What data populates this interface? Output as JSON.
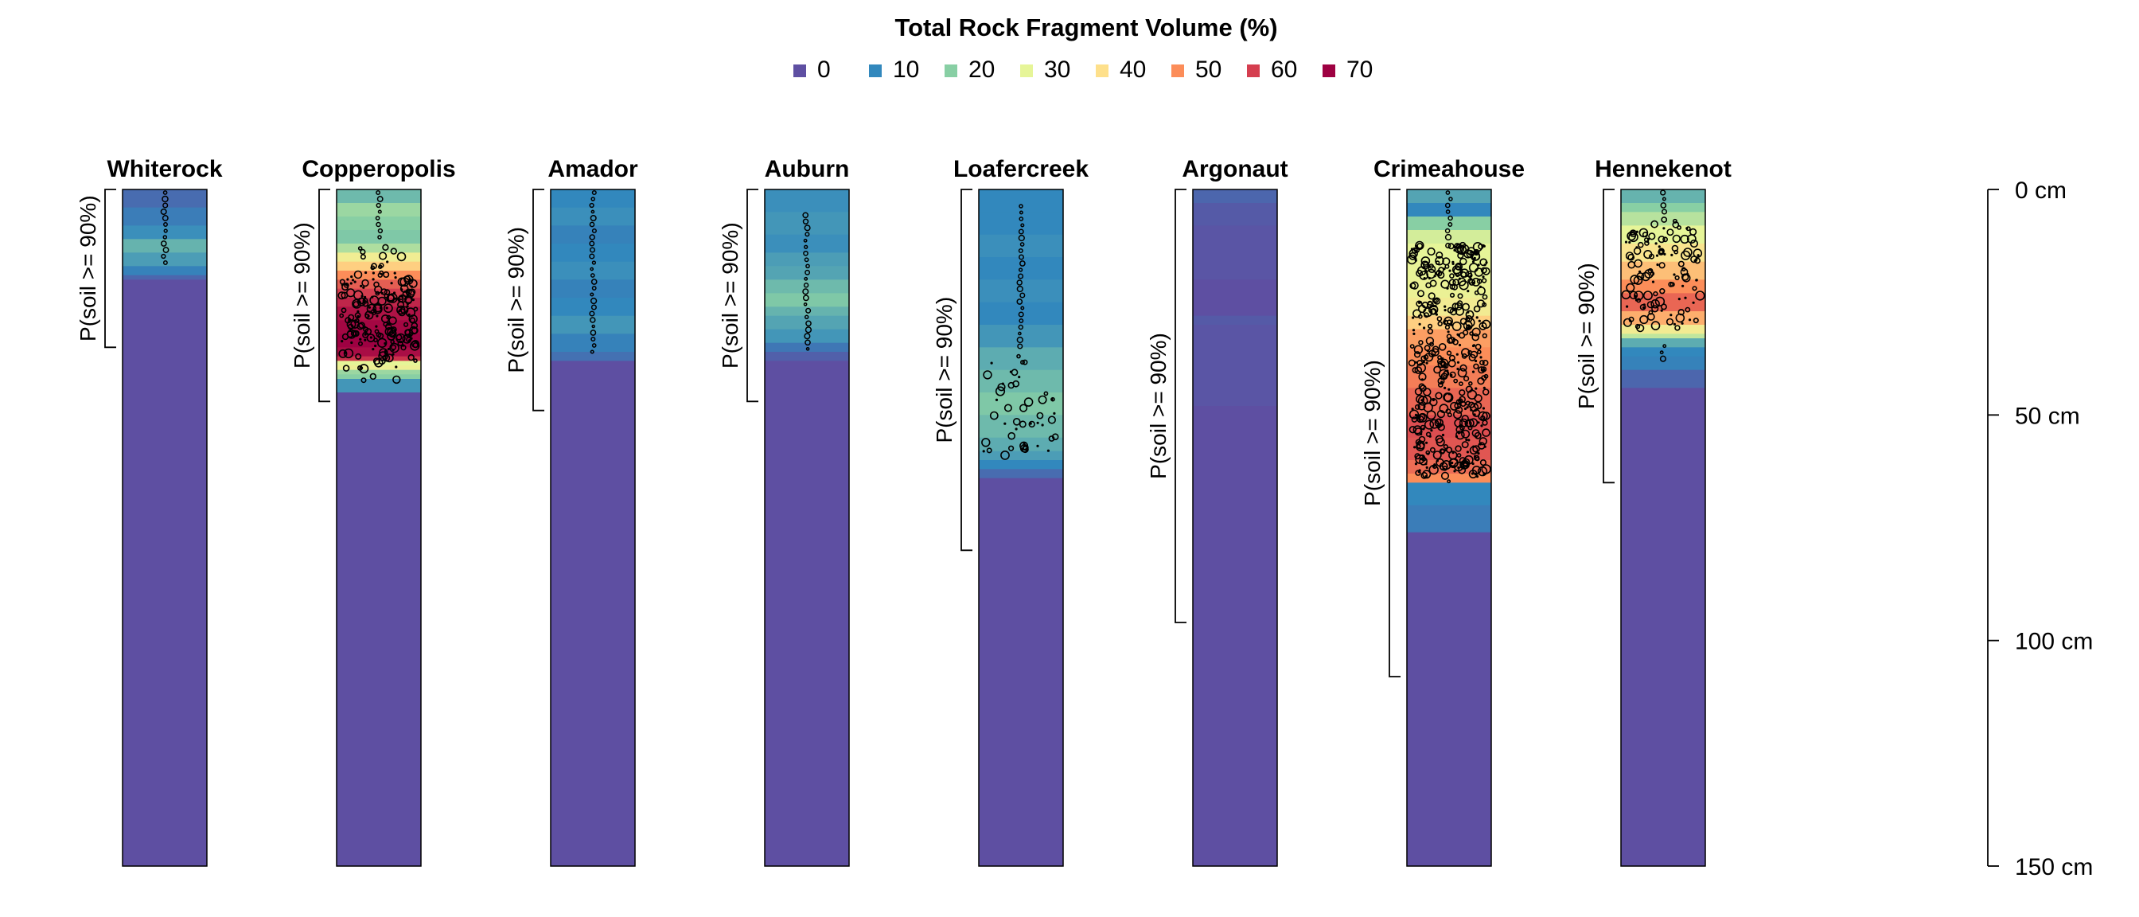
{
  "chart_data": {
    "type": "soil-profile",
    "title": "Total Rock Fragment Volume (%)",
    "legend": {
      "placement": "top-center",
      "entries": [
        {
          "label": "0",
          "color": "#5E4FA2"
        },
        {
          "label": "10",
          "color": "#3288BD"
        },
        {
          "label": "20",
          "color": "#88CFA4"
        },
        {
          "label": "30",
          "color": "#E6F598"
        },
        {
          "label": "40",
          "color": "#FEE08B"
        },
        {
          "label": "50",
          "color": "#FC8D59"
        },
        {
          "label": "60",
          "color": "#D53E4F"
        },
        {
          "label": "70",
          "color": "#9E0142"
        }
      ]
    },
    "depth_axis": {
      "range": [
        0,
        150
      ],
      "ticks": [
        0,
        50,
        100,
        150
      ],
      "tick_labels": [
        "0 cm",
        "50 cm",
        "100 cm",
        "150 cm"
      ]
    },
    "bracket_label": "P(soil >= 90%)",
    "profiles": [
      {
        "name": "Whiterock",
        "bracket": [
          0,
          35
        ],
        "segments": [
          [
            0,
            4,
            5
          ],
          [
            4,
            8,
            8
          ],
          [
            8,
            11,
            11
          ],
          [
            11,
            14,
            16
          ],
          [
            14,
            17,
            13
          ],
          [
            17,
            19,
            9
          ],
          [
            19,
            20,
            4
          ],
          [
            20,
            150,
            0
          ]
        ],
        "fragment_bands": [
          [
            0,
            17,
            1
          ]
        ]
      },
      {
        "name": "Copperopolis",
        "bracket": [
          0,
          47
        ],
        "segments": [
          [
            0,
            3,
            17
          ],
          [
            3,
            6,
            22
          ],
          [
            6,
            9,
            20
          ],
          [
            9,
            12,
            19
          ],
          [
            12,
            14,
            24
          ],
          [
            14,
            16,
            34
          ],
          [
            16,
            18,
            42
          ],
          [
            18,
            20,
            50
          ],
          [
            20,
            22,
            56
          ],
          [
            22,
            24,
            60
          ],
          [
            24,
            26,
            64
          ],
          [
            26,
            29,
            67
          ],
          [
            29,
            32,
            69
          ],
          [
            32,
            35,
            70
          ],
          [
            35,
            37,
            68
          ],
          [
            37,
            38,
            62
          ],
          [
            38,
            39,
            30
          ],
          [
            39,
            40,
            33
          ],
          [
            40,
            41,
            22
          ],
          [
            41,
            42,
            20
          ],
          [
            42,
            45,
            12
          ],
          [
            45,
            150,
            0
          ]
        ],
        "fragment_bands": [
          [
            0,
            12,
            1
          ],
          [
            12,
            18,
            2
          ],
          [
            18,
            39,
            4
          ],
          [
            39,
            43,
            2
          ]
        ]
      },
      {
        "name": "Amador",
        "bracket": [
          0,
          49
        ],
        "segments": [
          [
            0,
            4,
            10
          ],
          [
            4,
            8,
            11
          ],
          [
            8,
            12,
            9
          ],
          [
            12,
            16,
            10
          ],
          [
            16,
            20,
            11
          ],
          [
            20,
            24,
            9
          ],
          [
            24,
            28,
            10
          ],
          [
            28,
            32,
            12
          ],
          [
            32,
            36,
            9
          ],
          [
            36,
            38,
            6
          ],
          [
            38,
            150,
            0
          ]
        ],
        "fragment_bands": [
          [
            0,
            37,
            1
          ]
        ]
      },
      {
        "name": "Auburn",
        "bracket": [
          0,
          47
        ],
        "segments": [
          [
            0,
            5,
            11
          ],
          [
            5,
            10,
            12
          ],
          [
            10,
            14,
            11
          ],
          [
            14,
            17,
            13
          ],
          [
            17,
            20,
            14
          ],
          [
            20,
            23,
            17
          ],
          [
            23,
            26,
            19
          ],
          [
            26,
            28,
            16
          ],
          [
            28,
            31,
            14
          ],
          [
            31,
            34,
            12
          ],
          [
            34,
            36,
            7
          ],
          [
            36,
            38,
            3
          ],
          [
            38,
            150,
            0
          ]
        ],
        "fragment_bands": [
          [
            5,
            36,
            1
          ]
        ]
      },
      {
        "name": "Loafercreek",
        "bracket": [
          0,
          80
        ],
        "segments": [
          [
            0,
            5,
            10
          ],
          [
            5,
            10,
            10
          ],
          [
            10,
            15,
            11
          ],
          [
            15,
            20,
            10
          ],
          [
            20,
            25,
            11
          ],
          [
            25,
            30,
            10
          ],
          [
            30,
            35,
            12
          ],
          [
            35,
            40,
            15
          ],
          [
            40,
            45,
            17
          ],
          [
            45,
            50,
            19
          ],
          [
            50,
            55,
            17
          ],
          [
            55,
            58,
            15
          ],
          [
            58,
            60,
            13
          ],
          [
            60,
            62,
            10
          ],
          [
            62,
            64,
            5
          ],
          [
            64,
            150,
            0
          ]
        ],
        "fragment_bands": [
          [
            3,
            36,
            1
          ],
          [
            36,
            60,
            2
          ]
        ]
      },
      {
        "name": "Argonaut",
        "bracket": [
          0,
          96
        ],
        "segments": [
          [
            0,
            3,
            4
          ],
          [
            3,
            8,
            2
          ],
          [
            8,
            20,
            1
          ],
          [
            20,
            28,
            0
          ],
          [
            28,
            30,
            2
          ],
          [
            30,
            48,
            1
          ],
          [
            48,
            150,
            0
          ]
        ],
        "fragment_bands": []
      },
      {
        "name": "Crimeahouse",
        "bracket": [
          0,
          108
        ],
        "segments": [
          [
            0,
            3,
            14
          ],
          [
            3,
            6,
            10
          ],
          [
            6,
            9,
            20
          ],
          [
            9,
            12,
            28
          ],
          [
            12,
            16,
            30
          ],
          [
            16,
            20,
            31
          ],
          [
            20,
            24,
            32
          ],
          [
            24,
            28,
            35
          ],
          [
            28,
            31,
            42
          ],
          [
            31,
            35,
            48
          ],
          [
            35,
            39,
            50
          ],
          [
            39,
            44,
            52
          ],
          [
            44,
            50,
            55
          ],
          [
            50,
            55,
            58
          ],
          [
            55,
            60,
            57
          ],
          [
            60,
            63,
            54
          ],
          [
            63,
            65,
            50
          ],
          [
            65,
            70,
            10
          ],
          [
            70,
            76,
            8
          ],
          [
            76,
            150,
            0
          ]
        ],
        "fragment_bands": [
          [
            0,
            12,
            1
          ],
          [
            12,
            64,
            4
          ],
          [
            64,
            66,
            1
          ]
        ]
      },
      {
        "name": "Hennekenot",
        "bracket": [
          0,
          65
        ],
        "segments": [
          [
            0,
            3,
            16
          ],
          [
            3,
            5,
            20
          ],
          [
            5,
            8,
            25
          ],
          [
            8,
            12,
            30
          ],
          [
            12,
            16,
            38
          ],
          [
            16,
            20,
            44
          ],
          [
            20,
            23,
            50
          ],
          [
            23,
            27,
            55
          ],
          [
            27,
            30,
            46
          ],
          [
            30,
            32,
            35
          ],
          [
            32,
            33,
            26
          ],
          [
            33,
            35,
            15
          ],
          [
            35,
            37,
            10
          ],
          [
            37,
            40,
            9
          ],
          [
            40,
            44,
            4
          ],
          [
            44,
            150,
            0
          ]
        ],
        "fragment_bands": [
          [
            0,
            6,
            1
          ],
          [
            6,
            32,
            3
          ],
          [
            34,
            38,
            1
          ]
        ]
      }
    ]
  }
}
